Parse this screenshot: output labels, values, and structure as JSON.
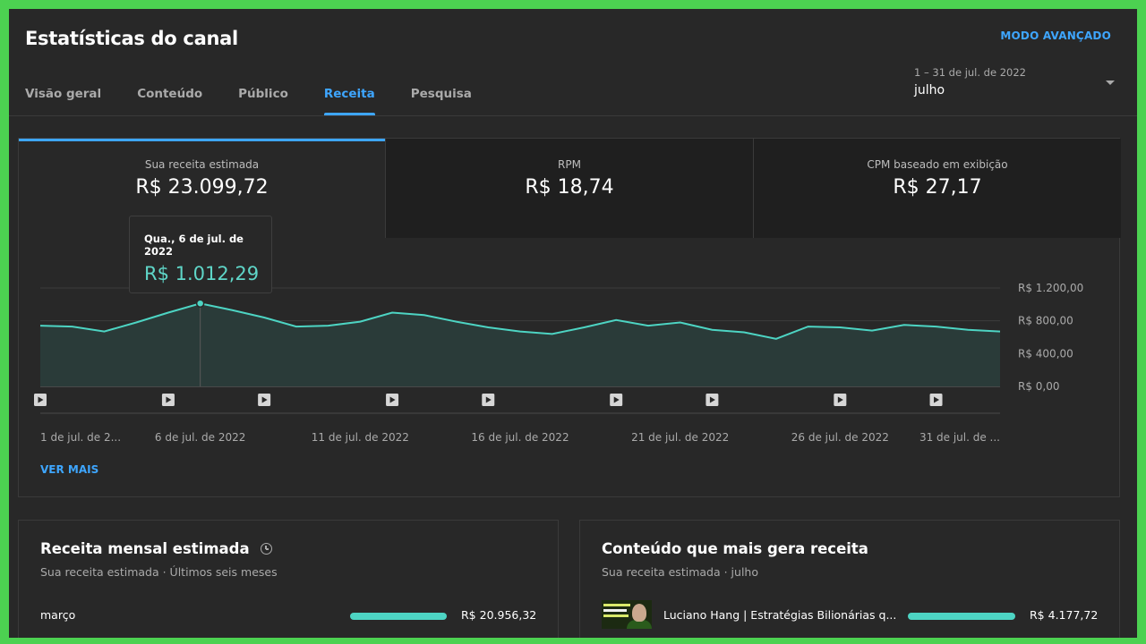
{
  "header": {
    "title": "Estatísticas do canal",
    "advanced_link": "MODO AVANÇADO"
  },
  "tabs": [
    {
      "label": "Visão geral",
      "active": false
    },
    {
      "label": "Conteúdo",
      "active": false
    },
    {
      "label": "Público",
      "active": false
    },
    {
      "label": "Receita",
      "active": true
    },
    {
      "label": "Pesquisa",
      "active": false
    }
  ],
  "period": {
    "range": "1 – 31 de jul. de 2022",
    "label": "julho"
  },
  "metrics": [
    {
      "label": "Sua receita estimada",
      "value": "R$ 23.099,72"
    },
    {
      "label": "RPM",
      "value": "R$ 18,74"
    },
    {
      "label": "CPM baseado em exibição",
      "value": "R$ 27,17"
    }
  ],
  "tooltip": {
    "date": "Qua., 6 de jul. de 2022",
    "value": "R$ 1.012,29"
  },
  "chart_data": {
    "type": "area",
    "x": [
      1,
      2,
      3,
      4,
      5,
      6,
      7,
      8,
      9,
      10,
      11,
      12,
      13,
      14,
      15,
      16,
      17,
      18,
      19,
      20,
      21,
      22,
      23,
      24,
      25,
      26,
      27,
      28,
      29,
      30,
      31
    ],
    "values": [
      740,
      730,
      670,
      780,
      900,
      1012,
      930,
      840,
      730,
      740,
      790,
      900,
      870,
      790,
      720,
      670,
      640,
      720,
      810,
      740,
      780,
      690,
      660,
      580,
      730,
      720,
      680,
      750,
      730,
      690,
      670
    ],
    "ylim": [
      0,
      1200
    ],
    "y_ticks": [
      "R$ 1.200,00",
      "R$ 800,00",
      "R$ 400,00",
      "R$ 0,00"
    ],
    "y_tick_values": [
      1200,
      800,
      400,
      0
    ],
    "x_ticks": [
      "1 de jul. de 2...",
      "6 de jul. de 2022",
      "11 de jul. de 2022",
      "16 de jul. de 2022",
      "21 de jul. de 2022",
      "26 de jul. de 2022",
      "31 de jul. de ..."
    ],
    "x_tick_days": [
      1,
      6,
      11,
      16,
      21,
      26,
      31
    ],
    "video_marker_days": [
      1,
      5,
      8,
      12,
      15,
      19,
      22,
      26,
      29
    ],
    "highlight_day": 6,
    "line_color": "#4dd4c3",
    "fill_color": "#2a3b39",
    "grid": true
  },
  "more_link": "VER MAIS",
  "monthly": {
    "title": "Receita mensal estimada",
    "subtitle": "Sua receita estimada · Últimos seis meses",
    "rows": [
      {
        "label": "março",
        "value": "R$ 20.956,32",
        "fraction": 1.0
      }
    ]
  },
  "top_content": {
    "title": "Conteúdo que mais gera receita",
    "subtitle": "Sua receita estimada · julho",
    "rows": [
      {
        "label": "Luciano Hang | Estratégias Bilionárias q...",
        "value": "R$ 4.177,72",
        "fraction": 1.0
      }
    ]
  }
}
